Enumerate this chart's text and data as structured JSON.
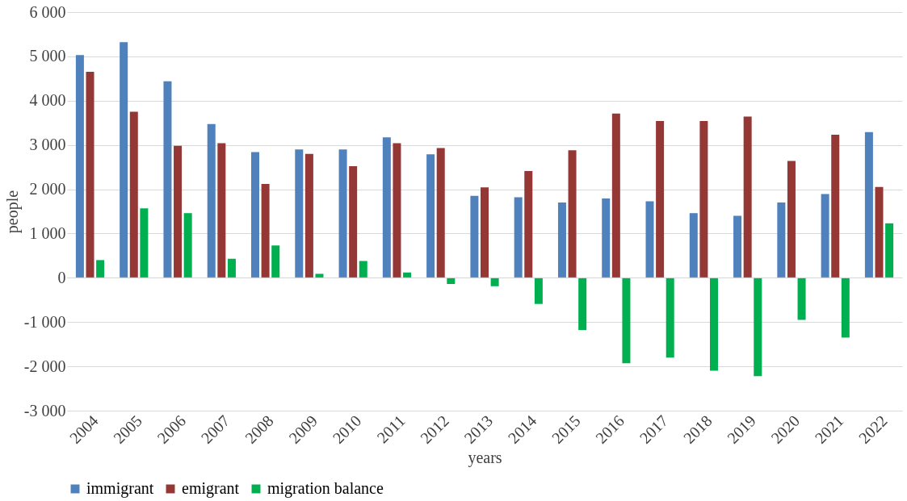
{
  "chart_data": {
    "type": "bar",
    "xlabel": "years",
    "ylabel": "people",
    "categories": [
      "2004",
      "2005",
      "2006",
      "2007",
      "2008",
      "2009",
      "2010",
      "2011",
      "2012",
      "2013",
      "2014",
      "2015",
      "2016",
      "2017",
      "2018",
      "2019",
      "2020",
      "2021",
      "2022"
    ],
    "series": [
      {
        "name": "immigrant",
        "color": "#4f81bd",
        "values": [
          5030,
          5320,
          4440,
          3470,
          2840,
          2900,
          2900,
          3170,
          2790,
          1850,
          1820,
          1700,
          1790,
          1730,
          1460,
          1400,
          1700,
          1890,
          3290
        ]
      },
      {
        "name": "emigrant",
        "color": "#953735",
        "values": [
          4650,
          3750,
          2980,
          3040,
          2120,
          2800,
          2520,
          3040,
          2930,
          2040,
          2410,
          2880,
          3710,
          3540,
          3540,
          3640,
          2640,
          3230,
          2050
        ]
      },
      {
        "name": "migration balance",
        "color": "#00b050",
        "values": [
          400,
          1570,
          1460,
          430,
          730,
          90,
          380,
          120,
          -140,
          -190,
          -590,
          -1180,
          -1930,
          -1800,
          -2100,
          -2220,
          -950,
          -1350,
          1230
        ]
      }
    ],
    "ylim": [
      -3000,
      6000
    ],
    "yticks": [
      {
        "value": -3000,
        "label": "-3 000"
      },
      {
        "value": -2000,
        "label": "-2 000"
      },
      {
        "value": -1000,
        "label": "-1 000"
      },
      0,
      {
        "value": 1000,
        "label": "1 000"
      },
      {
        "value": 2000,
        "label": "2 000"
      },
      {
        "value": 3000,
        "label": "3 000"
      },
      {
        "value": 4000,
        "label": "4 000"
      },
      {
        "value": 5000,
        "label": "5 000"
      },
      {
        "value": 6000,
        "label": "6 000"
      }
    ],
    "grid": "y",
    "legend": "bottom"
  }
}
